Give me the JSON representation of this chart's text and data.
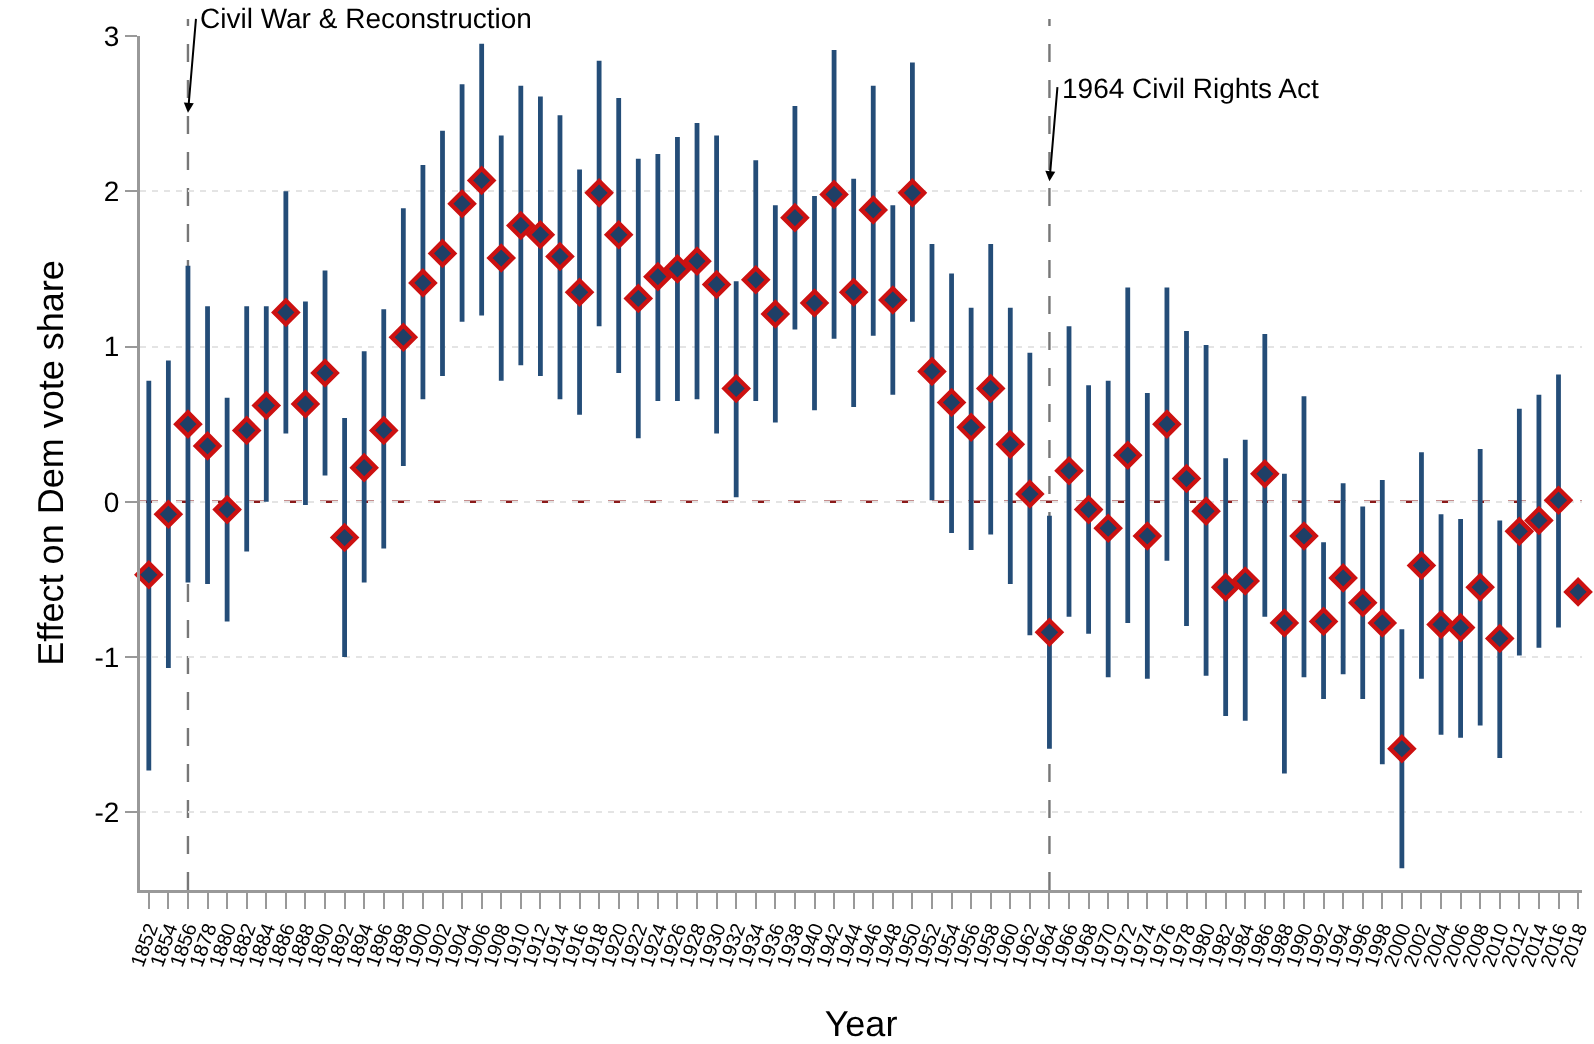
{
  "chart_data": {
    "type": "scatter",
    "xlabel": "Year",
    "ylabel": "Effect on Dem vote share",
    "categories": [
      "1852",
      "1854",
      "1856",
      "1878",
      "1880",
      "1882",
      "1884",
      "1886",
      "1888",
      "1890",
      "1892",
      "1894",
      "1896",
      "1898",
      "1900",
      "1902",
      "1904",
      "1906",
      "1908",
      "1910",
      "1912",
      "1914",
      "1916",
      "1918",
      "1920",
      "1922",
      "1924",
      "1926",
      "1928",
      "1930",
      "1932",
      "1934",
      "1936",
      "1938",
      "1940",
      "1942",
      "1944",
      "1946",
      "1948",
      "1950",
      "1952",
      "1954",
      "1956",
      "1958",
      "1960",
      "1962",
      "1964",
      "1966",
      "1968",
      "1970",
      "1972",
      "1974",
      "1976",
      "1978",
      "1980",
      "1982",
      "1984",
      "1986",
      "1988",
      "1990",
      "1992",
      "1994",
      "1996",
      "1998",
      "2000",
      "2002",
      "2004",
      "2006",
      "2008",
      "2010",
      "2012",
      "2014",
      "2016",
      "2018"
    ],
    "series": [
      {
        "color": "#cc1111",
        "values": [
          -0.47,
          -0.08,
          0.5,
          0.36,
          -0.05,
          0.46,
          0.62,
          1.22,
          0.63,
          0.83,
          -0.23,
          0.22,
          0.46,
          1.06,
          1.41,
          1.6,
          1.92,
          2.07,
          1.57,
          1.78,
          1.72,
          1.58,
          1.35,
          1.99,
          1.72,
          1.31,
          1.45,
          1.5,
          1.55,
          1.4,
          0.73,
          1.43,
          1.21,
          1.83,
          1.28,
          1.98,
          1.35,
          1.88,
          1.3,
          1.99,
          0.84,
          0.64,
          0.48,
          0.73,
          0.37,
          0.05,
          -0.84,
          0.2,
          -0.05,
          -0.17,
          0.3,
          -0.22,
          0.5,
          0.15,
          -0.06,
          -0.55,
          -0.51,
          0.18,
          -0.78,
          -0.22,
          -0.77,
          -0.49,
          -0.65,
          -0.78,
          -1.59,
          -0.41,
          -0.79,
          -0.81,
          -0.55,
          -0.88,
          -0.19,
          -0.12,
          0.01,
          -0.58
        ],
        "errors": [
          [
            -1.73,
            0.78
          ],
          [
            -1.07,
            0.91
          ],
          [
            -0.52,
            1.52
          ],
          [
            -0.53,
            1.26
          ],
          [
            -0.77,
            0.67
          ],
          [
            -0.32,
            1.26
          ],
          [
            0.0,
            1.26
          ],
          [
            0.44,
            2.0
          ],
          [
            -0.02,
            1.29
          ],
          [
            0.17,
            1.49
          ],
          [
            -1.0,
            0.54
          ],
          [
            -0.52,
            0.97
          ],
          [
            -0.3,
            1.24
          ],
          [
            0.23,
            1.89
          ],
          [
            0.66,
            2.17
          ],
          [
            0.81,
            2.39
          ],
          [
            1.16,
            2.69
          ],
          [
            1.2,
            2.95
          ],
          [
            0.78,
            2.36
          ],
          [
            0.88,
            2.68
          ],
          [
            0.81,
            2.61
          ],
          [
            0.66,
            2.49
          ],
          [
            0.56,
            2.14
          ],
          [
            1.13,
            2.84
          ],
          [
            0.83,
            2.6
          ],
          [
            0.41,
            2.21
          ],
          [
            0.65,
            2.24
          ],
          [
            0.65,
            2.35
          ],
          [
            0.66,
            2.44
          ],
          [
            0.44,
            2.36
          ],
          [
            0.03,
            1.42
          ],
          [
            0.65,
            2.2
          ],
          [
            0.51,
            1.91
          ],
          [
            1.11,
            2.55
          ],
          [
            0.59,
            1.97
          ],
          [
            1.05,
            2.91
          ],
          [
            0.61,
            2.08
          ],
          [
            1.07,
            2.68
          ],
          [
            0.69,
            1.91
          ],
          [
            1.16,
            2.83
          ],
          [
            0.01,
            1.66
          ],
          [
            -0.2,
            1.47
          ],
          [
            -0.31,
            1.25
          ],
          [
            -0.21,
            1.66
          ],
          [
            -0.53,
            1.25
          ],
          [
            -0.86,
            0.96
          ],
          [
            -1.59,
            -0.09
          ],
          [
            -0.74,
            1.13
          ],
          [
            -0.85,
            0.75
          ],
          [
            -1.13,
            0.78
          ],
          [
            -0.78,
            1.38
          ],
          [
            -1.14,
            0.7
          ],
          [
            -0.38,
            1.38
          ],
          [
            -0.8,
            1.1
          ],
          [
            -1.12,
            1.01
          ],
          [
            -1.38,
            0.28
          ],
          [
            -1.41,
            0.4
          ],
          [
            -0.74,
            1.08
          ],
          [
            -1.75,
            0.18
          ],
          [
            -1.13,
            0.68
          ],
          [
            -1.27,
            -0.26
          ],
          [
            -1.11,
            0.12
          ],
          [
            -1.27,
            -0.03
          ],
          [
            -1.69,
            0.14
          ],
          [
            -2.36,
            -0.82
          ],
          [
            -1.14,
            0.32
          ],
          [
            -1.5,
            -0.08
          ],
          [
            -1.52,
            -0.11
          ],
          [
            -1.44,
            0.34
          ],
          [
            -1.65,
            -0.12
          ],
          [
            -0.99,
            0.6
          ],
          [
            -0.94,
            0.69
          ],
          [
            -0.81,
            0.82
          ],
          null
        ]
      }
    ],
    "ylim": [
      -2.5,
      3
    ],
    "yticks": [
      -2,
      -1,
      0,
      1,
      2,
      3
    ],
    "grid": "y",
    "marker": "diamond",
    "ref_lines": [
      {
        "axis": "y",
        "value": 0,
        "color": "#8b1a1a",
        "line_style": "dashed"
      },
      {
        "axis": "x",
        "value": "1856",
        "label": "Civil War & Reconstruction",
        "color": "#777777",
        "line_style": "dashed"
      },
      {
        "axis": "x",
        "value": "1964",
        "label": "1964 Civil Rights Act",
        "color": "#777777",
        "line_style": "dashed"
      }
    ]
  }
}
